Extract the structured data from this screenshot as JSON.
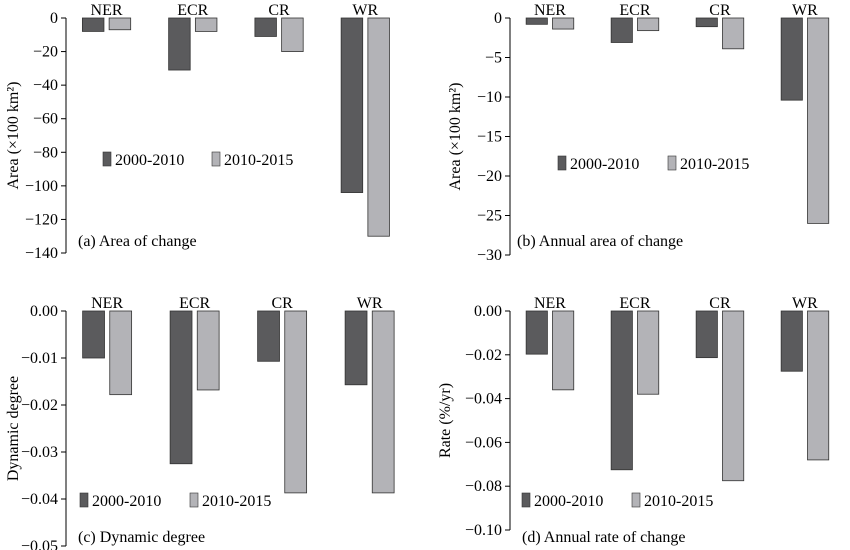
{
  "colors": {
    "series1": "#5b5b5d",
    "series2": "#b3b3b7",
    "axis": "#000000",
    "bar_stroke": "#333333"
  },
  "chart_data": [
    {
      "type": "bar",
      "caption": "(a) Area of change",
      "ylabel": "Area (×100 km²)",
      "categories": [
        "NER",
        "ECR",
        "CR",
        "WR"
      ],
      "series": [
        {
          "name": "2000-2010",
          "values": [
            -8,
            -31,
            -11,
            -104
          ]
        },
        {
          "name": "2010-2015",
          "values": [
            -7,
            -8,
            -20,
            -130
          ]
        }
      ],
      "ylim": [
        -140,
        0
      ],
      "yticks": [
        0,
        -20,
        -40,
        -60,
        -80,
        -100,
        -120,
        -140
      ],
      "ytick_labels": [
        "0",
        "−20",
        "−40",
        "−60",
        "−80",
        "−100",
        "−120",
        "−140"
      ],
      "legend_position": "middle-left"
    },
    {
      "type": "bar",
      "caption": "(b) Annual area of change",
      "ylabel": "Area (×100 km²)",
      "categories": [
        "NER",
        "ECR",
        "CR",
        "WR"
      ],
      "series": [
        {
          "name": "2000-2010",
          "values": [
            -0.8,
            -3.1,
            -1.1,
            -10.4
          ]
        },
        {
          "name": "2010-2015",
          "values": [
            -1.4,
            -1.6,
            -3.9,
            -26.0
          ]
        }
      ],
      "ylim": [
        -30,
        0
      ],
      "yticks": [
        0,
        -5,
        -10,
        -15,
        -20,
        -25,
        -30
      ],
      "ytick_labels": [
        "0",
        "−5",
        "−10",
        "−15",
        "−20",
        "−25",
        "−30"
      ],
      "legend_position": "middle-left"
    },
    {
      "type": "bar",
      "caption": "(c) Dynamic degree",
      "ylabel": "Dynamic degree",
      "categories": [
        "NER",
        "ECR",
        "CR",
        "WR"
      ],
      "series": [
        {
          "name": "2000-2010",
          "values": [
            -0.01,
            -0.0325,
            -0.0107,
            -0.0157
          ]
        },
        {
          "name": "2010-2015",
          "values": [
            -0.0178,
            -0.0168,
            -0.0387,
            -0.0387
          ]
        }
      ],
      "ylim": [
        -0.05,
        0
      ],
      "yticks": [
        0,
        -0.01,
        -0.02,
        -0.03,
        -0.04,
        -0.05
      ],
      "ytick_labels": [
        "0.00",
        "−0.01",
        "−0.02",
        "−0.03",
        "−0.04",
        "−0.05"
      ],
      "legend_position": "bottom-left"
    },
    {
      "type": "bar",
      "caption": "(d) Annual rate of change",
      "ylabel": "Rate (%/yr)",
      "categories": [
        "NER",
        "ECR",
        "CR",
        "WR"
      ],
      "series": [
        {
          "name": "2000-2010",
          "values": [
            -0.0197,
            -0.0725,
            -0.0213,
            -0.0275
          ]
        },
        {
          "name": "2010-2015",
          "values": [
            -0.036,
            -0.038,
            -0.0775,
            -0.068
          ]
        }
      ],
      "ylim": [
        -0.1,
        0
      ],
      "yticks": [
        0,
        -0.02,
        -0.04,
        -0.06,
        -0.08,
        -0.1
      ],
      "ytick_labels": [
        "0.00",
        "−0.02",
        "−0.04",
        "−0.06",
        "−0.08",
        "−0.10"
      ],
      "legend_position": "bottom-left"
    }
  ]
}
